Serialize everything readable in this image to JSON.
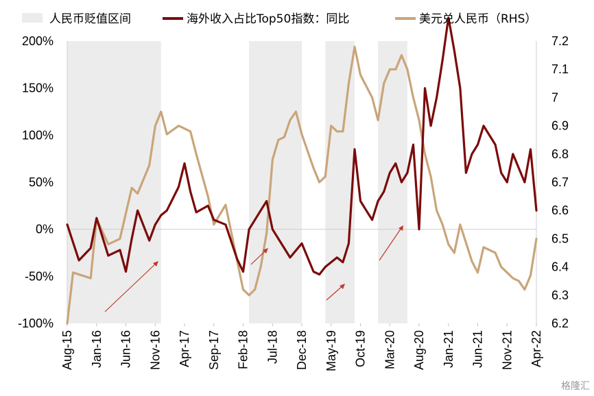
{
  "chart_data": {
    "type": "line",
    "title": "",
    "legend": {
      "placement": "top",
      "items": [
        {
          "label": "人民币贬值区间",
          "kind": "band",
          "color": "#ececec"
        },
        {
          "label": "海外收入占比Top50指数：同比",
          "kind": "line",
          "color": "#7b0a0a"
        },
        {
          "label": "美元兑人民币（RHS）",
          "kind": "line",
          "color": "#c9a57a"
        }
      ]
    },
    "x_axis": {
      "start": "2015-08",
      "end": "2022-04",
      "tick_labels": [
        "Aug-15",
        "Jan-16",
        "Jun-16",
        "Nov-16",
        "Apr-17",
        "Sep-17",
        "Feb-18",
        "Jul-18",
        "Dec-18",
        "May-19",
        "Oct-19",
        "Mar-20",
        "Aug-20",
        "Jan-21",
        "Jun-21",
        "Nov-21",
        "Apr-22"
      ],
      "label_rotation": -90
    },
    "y_left": {
      "ylim": [
        -1.0,
        2.0
      ],
      "tick_labels": [
        "-100%",
        "-50%",
        "0%",
        "50%",
        "100%",
        "150%",
        "200%"
      ]
    },
    "y_right": {
      "ylim": [
        6.2,
        7.2
      ],
      "tick_labels": [
        "6.2",
        "6.3",
        "6.4",
        "6.5",
        "6.6",
        "6.7",
        "6.8",
        "6.9",
        "7",
        "7.1",
        "7.2"
      ]
    },
    "shaded_bands": [
      {
        "start": "2015-08",
        "end": "2016-12"
      },
      {
        "start": "2018-03",
        "end": "2018-12"
      },
      {
        "start": "2019-04",
        "end": "2019-09"
      },
      {
        "start": "2020-01",
        "end": "2020-06"
      }
    ],
    "series": [
      {
        "name": "海外收入占比Top50指数：同比",
        "axis": "left",
        "color": "#7b0a0a",
        "x": [
          "2015-08",
          "2015-10",
          "2015-12",
          "2016-01",
          "2016-03",
          "2016-05",
          "2016-06",
          "2016-07",
          "2016-08",
          "2016-10",
          "2016-11",
          "2016-12",
          "2017-01",
          "2017-03",
          "2017-04",
          "2017-05",
          "2017-06",
          "2017-08",
          "2017-09",
          "2017-11",
          "2018-01",
          "2018-02",
          "2018-03",
          "2018-05",
          "2018-06",
          "2018-07",
          "2018-08",
          "2018-09",
          "2018-10",
          "2018-12",
          "2019-02",
          "2019-03",
          "2019-04",
          "2019-06",
          "2019-07",
          "2019-08",
          "2019-09",
          "2019-10",
          "2019-11",
          "2019-12",
          "2020-01",
          "2020-02",
          "2020-03",
          "2020-04",
          "2020-05",
          "2020-06",
          "2020-07",
          "2020-08",
          "2020-09",
          "2020-10",
          "2020-11",
          "2020-12",
          "2021-01",
          "2021-02",
          "2021-03",
          "2021-04",
          "2021-05",
          "2021-06",
          "2021-07",
          "2021-09",
          "2021-10",
          "2021-11",
          "2021-12",
          "2022-02",
          "2022-03",
          "2022-04"
        ],
        "values": [
          0.05,
          -0.33,
          -0.2,
          0.12,
          -0.28,
          -0.22,
          -0.45,
          -0.1,
          0.2,
          -0.12,
          0.05,
          0.15,
          0.2,
          0.45,
          0.7,
          0.4,
          0.18,
          0.25,
          0.1,
          0.05,
          -0.32,
          -0.45,
          0.0,
          0.2,
          0.3,
          0.0,
          -0.1,
          -0.2,
          -0.3,
          -0.15,
          -0.45,
          -0.48,
          -0.4,
          -0.3,
          -0.35,
          -0.15,
          0.85,
          0.3,
          0.2,
          0.1,
          0.3,
          0.4,
          0.6,
          0.7,
          0.5,
          0.6,
          0.9,
          0.0,
          1.5,
          1.1,
          1.4,
          1.8,
          2.25,
          1.9,
          1.5,
          0.6,
          0.8,
          0.9,
          1.1,
          0.9,
          0.6,
          0.5,
          0.8,
          0.5,
          0.85,
          0.2
        ]
      },
      {
        "name": "美元兑人民币（RHS）",
        "axis": "right",
        "color": "#c9a57a",
        "x": [
          "2015-08",
          "2015-09",
          "2015-12",
          "2016-01",
          "2016-03",
          "2016-05",
          "2016-07",
          "2016-08",
          "2016-10",
          "2016-11",
          "2016-12",
          "2017-01",
          "2017-03",
          "2017-05",
          "2017-06",
          "2017-08",
          "2017-09",
          "2017-11",
          "2018-01",
          "2018-02",
          "2018-03",
          "2018-04",
          "2018-05",
          "2018-06",
          "2018-07",
          "2018-08",
          "2018-09",
          "2018-10",
          "2018-11",
          "2018-12",
          "2019-02",
          "2019-03",
          "2019-04",
          "2019-05",
          "2019-06",
          "2019-07",
          "2019-08",
          "2019-09",
          "2019-10",
          "2019-12",
          "2020-01",
          "2020-02",
          "2020-03",
          "2020-04",
          "2020-05",
          "2020-06",
          "2020-07",
          "2020-08",
          "2020-09",
          "2020-10",
          "2020-11",
          "2020-12",
          "2021-01",
          "2021-02",
          "2021-03",
          "2021-05",
          "2021-06",
          "2021-07",
          "2021-09",
          "2021-10",
          "2021-11",
          "2021-12",
          "2022-01",
          "2022-02",
          "2022-03",
          "2022-04"
        ],
        "values": [
          6.2,
          6.38,
          6.36,
          6.57,
          6.48,
          6.5,
          6.68,
          6.66,
          6.76,
          6.9,
          6.95,
          6.87,
          6.9,
          6.88,
          6.8,
          6.65,
          6.55,
          6.62,
          6.42,
          6.32,
          6.3,
          6.32,
          6.4,
          6.52,
          6.78,
          6.85,
          6.86,
          6.92,
          6.95,
          6.87,
          6.75,
          6.7,
          6.72,
          6.9,
          6.88,
          6.88,
          7.05,
          7.18,
          7.08,
          7.0,
          6.92,
          7.05,
          7.1,
          7.1,
          7.15,
          7.1,
          7.0,
          6.92,
          6.8,
          6.72,
          6.6,
          6.55,
          6.48,
          6.45,
          6.55,
          6.42,
          6.38,
          6.47,
          6.45,
          6.4,
          6.38,
          6.36,
          6.35,
          6.32,
          6.37,
          6.5
        ]
      }
    ]
  },
  "watermark": "格隆汇"
}
